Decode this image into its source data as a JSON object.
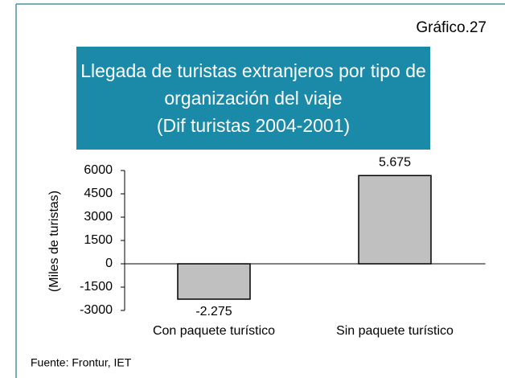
{
  "chart_data": {
    "type": "bar",
    "label": "Gráfico.27",
    "title": "Llegada de turistas extranjeros por tipo de organización del viaje",
    "subtitle": "(Dif turistas 2004-2001)",
    "y_label": "(Miles de turistas)",
    "categories": [
      "Con paquete turístico",
      "Sin paquete turístico"
    ],
    "values": [
      -2275,
      5675
    ],
    "value_labels": [
      "-2.275",
      "5.675"
    ],
    "color": "#c0c0c0",
    "ylim": [
      -3000,
      6000
    ],
    "yticks": [
      -3000,
      -1500,
      0,
      1500,
      3000,
      4500,
      6000
    ],
    "grid": false,
    "source": "Fuente: Frontur, IET"
  }
}
